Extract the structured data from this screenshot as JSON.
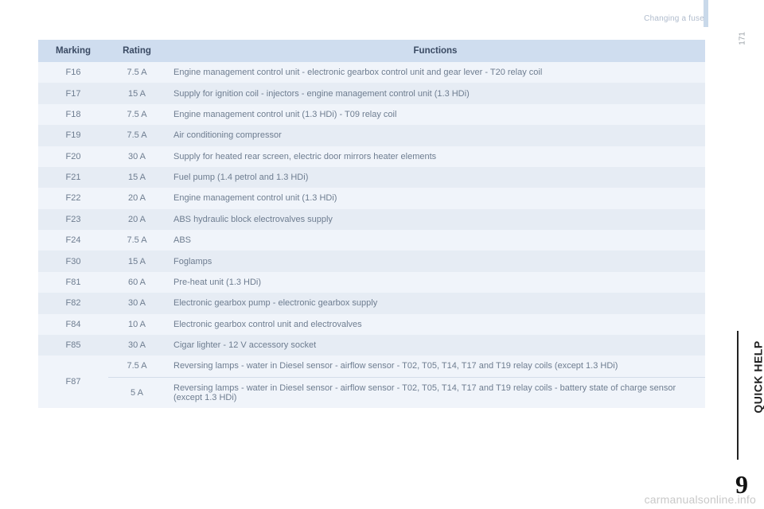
{
  "header": {
    "section_title": "Changing a fuse",
    "page_number": "171"
  },
  "table": {
    "columns": {
      "marking": "Marking",
      "rating": "Rating",
      "functions": "Functions"
    },
    "rows": [
      {
        "marking": "F16",
        "rating": "7.5 A",
        "functions": "Engine management control unit - electronic gearbox control unit and gear lever - T20 relay coil"
      },
      {
        "marking": "F17",
        "rating": "15 A",
        "functions": "Supply for ignition coil - injectors - engine management control unit (1.3 HDi)"
      },
      {
        "marking": "F18",
        "rating": "7.5 A",
        "functions": "Engine management control unit (1.3 HDi) - T09 relay coil"
      },
      {
        "marking": "F19",
        "rating": "7.5 A",
        "functions": "Air conditioning compressor"
      },
      {
        "marking": "F20",
        "rating": "30 A",
        "functions": "Supply for heated rear screen, electric door mirrors heater elements"
      },
      {
        "marking": "F21",
        "rating": "15 A",
        "functions": "Fuel pump (1.4 petrol and 1.3 HDi)"
      },
      {
        "marking": "F22",
        "rating": "20 A",
        "functions": "Engine management control unit (1.3 HDi)"
      },
      {
        "marking": "F23",
        "rating": "20 A",
        "functions": "ABS hydraulic block electrovalves supply"
      },
      {
        "marking": "F24",
        "rating": "7.5 A",
        "functions": "ABS"
      },
      {
        "marking": "F30",
        "rating": "15 A",
        "functions": "Foglamps"
      },
      {
        "marking": "F81",
        "rating": "60 A",
        "functions": "Pre-heat unit (1.3 HDi)"
      },
      {
        "marking": "F82",
        "rating": "30 A",
        "functions": "Electronic gearbox pump - electronic gearbox supply"
      },
      {
        "marking": "F84",
        "rating": "10 A",
        "functions": "Electronic gearbox control unit and electrovalves"
      },
      {
        "marking": "F85",
        "rating": "30 A",
        "functions": "Cigar lighter - 12 V accessory socket"
      }
    ],
    "f87": {
      "marking": "F87",
      "r1_rating": "7.5 A",
      "r1_functions": "Reversing lamps - water in Diesel sensor - airflow sensor - T02, T05, T14, T17 and T19 relay coils (except 1.3 HDi)",
      "r2_rating": "5 A",
      "r2_functions": "Reversing lamps - water in Diesel sensor - airflow sensor - T02, T05, T14, T17 and T19 relay coils - battery state of charge sensor (except 1.3 HDi)"
    }
  },
  "sidebar": {
    "tab_label": "QUICK HELP",
    "chapter_number": "9"
  },
  "footer": {
    "watermark": "carmanualsonline.info"
  },
  "style": {
    "header_bg": "#cfddef",
    "row_odd_bg": "#f0f4fa",
    "row_even_bg": "#e6ecf4",
    "text_muted": "#6e7d90",
    "text_dim": "#8696aa",
    "accent_notch": "#c9d9ea"
  }
}
